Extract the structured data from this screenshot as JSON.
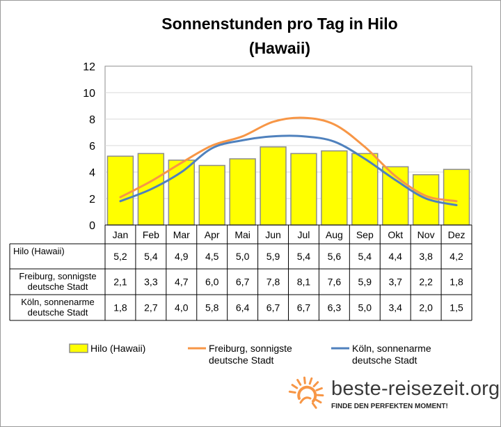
{
  "chart_data": {
    "type": "bar",
    "title_line1": "Sonnenstunden pro Tag in Hilo",
    "title_line2": "(Hawaii)",
    "categories": [
      "Jan",
      "Feb",
      "Mar",
      "Apr",
      "Mai",
      "Jun",
      "Jul",
      "Aug",
      "Sep",
      "Okt",
      "Nov",
      "Dez"
    ],
    "ylim": [
      0,
      12
    ],
    "yticks": [
      "0",
      "2",
      "4",
      "6",
      "8",
      "10",
      "12"
    ],
    "grid": true,
    "legend_position": "bottom",
    "series": [
      {
        "name": "Hilo (Hawaii)",
        "type": "bar",
        "color": "#ffff00",
        "values": [
          5.2,
          5.4,
          4.9,
          4.5,
          5.0,
          5.9,
          5.4,
          5.6,
          5.4,
          4.4,
          3.8,
          4.2
        ],
        "labels": [
          "5,2",
          "5,4",
          "4,9",
          "4,5",
          "5,0",
          "5,9",
          "5,4",
          "5,6",
          "5,4",
          "4,4",
          "3,8",
          "4,2"
        ]
      },
      {
        "name": "Freiburg, sonnigste deutsche Stadt",
        "name_lines": [
          "Freiburg, sonnigste",
          "deutsche Stadt"
        ],
        "type": "line",
        "color": "#f79646",
        "values": [
          2.1,
          3.3,
          4.7,
          6.0,
          6.7,
          7.8,
          8.1,
          7.6,
          5.9,
          3.7,
          2.2,
          1.8
        ],
        "labels": [
          "2,1",
          "3,3",
          "4,7",
          "6,0",
          "6,7",
          "7,8",
          "8,1",
          "7,6",
          "5,9",
          "3,7",
          "2,2",
          "1,8"
        ]
      },
      {
        "name": "Köln, sonnenarme deutsche Stadt",
        "name_lines": [
          "Köln, sonnenarme",
          "deutsche Stadt"
        ],
        "type": "line",
        "color": "#4f81bd",
        "values": [
          1.8,
          2.7,
          4.0,
          5.8,
          6.4,
          6.7,
          6.7,
          6.3,
          5.0,
          3.4,
          2.0,
          1.5
        ],
        "labels": [
          "1,8",
          "2,7",
          "4,0",
          "5,8",
          "6,4",
          "6,7",
          "6,7",
          "6,3",
          "5,0",
          "3,4",
          "2,0",
          "1,5"
        ]
      }
    ]
  },
  "branding": {
    "site": "beste-reisezeit.org",
    "tagline": "FINDE DEN PERFEKTEN MOMENT!",
    "sun_color": "#f79646"
  }
}
